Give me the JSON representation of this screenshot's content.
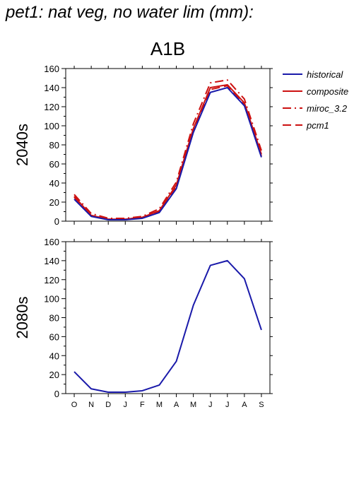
{
  "page": {
    "title": "pet1: nat veg, no water lim (mm):"
  },
  "chart_data": [
    {
      "type": "line",
      "title": "A1B",
      "ylabel": "2040s",
      "xlabel": "",
      "categories": [
        "O",
        "N",
        "D",
        "J",
        "F",
        "M",
        "A",
        "M",
        "J",
        "J",
        "A",
        "S"
      ],
      "ylim": [
        0,
        160
      ],
      "yticks": [
        0,
        20,
        40,
        60,
        80,
        100,
        120,
        140,
        160
      ],
      "legend_position": "right, outside",
      "series": [
        {
          "name": "historical",
          "color": "#1a1aaa",
          "dash": "solid",
          "values": [
            23,
            5,
            1.5,
            1.5,
            3,
            9,
            34,
            93,
            135,
            140,
            121,
            67
          ]
        },
        {
          "name": "composite",
          "color": "#cc1111",
          "dash": "solid",
          "values": [
            26,
            6,
            2,
            2,
            4,
            11,
            38,
            97,
            140,
            143,
            124,
            70
          ]
        },
        {
          "name": "miroc_3.2",
          "color": "#cc1111",
          "dash": "dashdot",
          "values": [
            28,
            8,
            3,
            3,
            5,
            13,
            41,
            102,
            145,
            148,
            128,
            74
          ]
        },
        {
          "name": "pcm1",
          "color": "#cc1111",
          "dash": "dashed",
          "values": [
            25,
            6,
            2,
            2,
            4,
            10,
            36,
            95,
            138,
            142,
            122,
            68
          ]
        }
      ]
    },
    {
      "type": "line",
      "title": "",
      "ylabel": "2080s",
      "xlabel": "",
      "categories": [
        "O",
        "N",
        "D",
        "J",
        "F",
        "M",
        "A",
        "M",
        "J",
        "J",
        "A",
        "S"
      ],
      "ylim": [
        0,
        160
      ],
      "yticks": [
        0,
        20,
        40,
        60,
        80,
        100,
        120,
        140,
        160
      ],
      "series": [
        {
          "name": "historical",
          "color": "#1a1aaa",
          "dash": "solid",
          "values": [
            23,
            5,
            1.5,
            1.5,
            3,
            9,
            34,
            93,
            135,
            140,
            121,
            67
          ]
        }
      ]
    }
  ]
}
